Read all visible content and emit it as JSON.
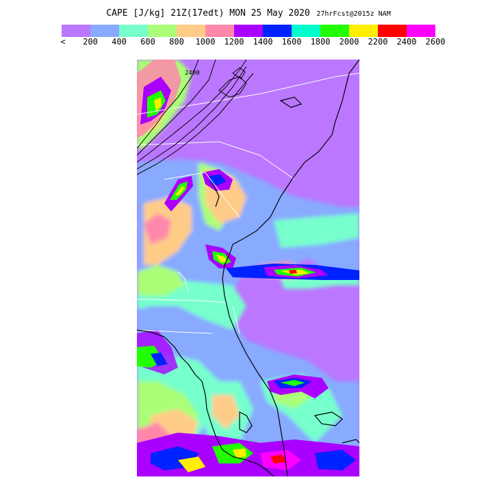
{
  "title": {
    "main": "CAPE [J/kg] 21Z(17edt) MON 25 May 2020",
    "forecast": "27hrFcst@2015z NAM"
  },
  "legend": {
    "less_than_label": "<",
    "values": [
      "200",
      "400",
      "600",
      "800",
      "1000",
      "1200",
      "1400",
      "1600",
      "1800",
      "2000",
      "2200",
      "2400",
      "2600"
    ],
    "colors": [
      "#bb77ff",
      "#88aaff",
      "#77ffcc",
      "#aaff77",
      "#ffcc88",
      "#ff88aa",
      "#aa00ff",
      "#0022ff",
      "#00ffcc",
      "#22ff00",
      "#ffee00",
      "#ff0000",
      "#ff00ff"
    ]
  },
  "map": {
    "contour_label": "2400",
    "colors": {
      "background": "#bb77ff",
      "land_outline": "#000000",
      "state_border": "#ffffff"
    }
  }
}
